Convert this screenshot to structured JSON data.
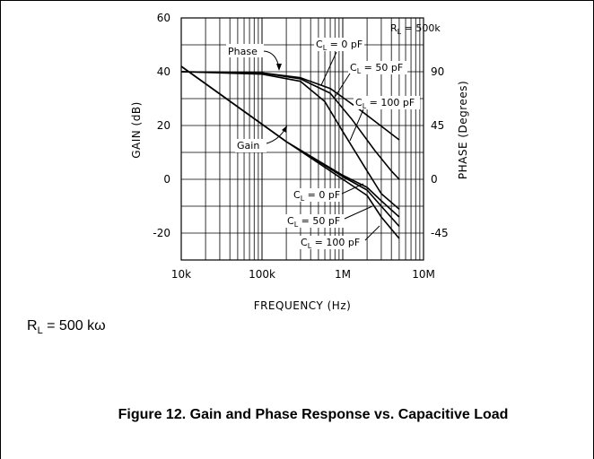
{
  "chart_data": {
    "type": "line",
    "xlabel": "FREQUENCY (Hz)",
    "ylabel_left": "GAIN (dB)",
    "ylabel_right": "PHASE (Degrees)",
    "x_scale": "log",
    "xlim": [
      10000,
      10000000
    ],
    "x_tick_labels": [
      "10k",
      "100k",
      "1M",
      "10M"
    ],
    "ylim_left": [
      -30,
      60
    ],
    "y_ticks_left": [
      -20,
      0,
      20,
      40,
      60
    ],
    "ylim_right": [
      -67.5,
      135
    ],
    "y_ticks_right": [
      -45,
      0,
      45,
      90
    ],
    "grid": true,
    "annotations": {
      "rl": "R",
      "rl_sub": "L",
      "rl_value": " = 500k",
      "phase_label": "Phase",
      "gain_label": "Gain",
      "cl_prefix": "C",
      "cl_sub": "L",
      "cl0": " = 0 pF",
      "cl50": " = 50 pF",
      "cl100": " = 100 pF"
    },
    "series": [
      {
        "quantity": "gain",
        "cl": "0 pF",
        "axis": "left",
        "x": [
          10000,
          200000,
          1000000,
          2000000,
          3000000,
          5000000
        ],
        "y": [
          42,
          14,
          1.5,
          -3,
          -8,
          -14
        ]
      },
      {
        "quantity": "gain",
        "cl": "50 pF",
        "axis": "left",
        "x": [
          10000,
          200000,
          1000000,
          2000000,
          3000000,
          5000000
        ],
        "y": [
          42,
          14,
          1,
          -4,
          -10,
          -17.5
        ]
      },
      {
        "quantity": "gain",
        "cl": "100 pF",
        "axis": "left",
        "x": [
          10000,
          200000,
          1000000,
          2000000,
          3000000,
          5000000
        ],
        "y": [
          42,
          14,
          0,
          -6,
          -14,
          -22
        ]
      },
      {
        "quantity": "phase",
        "cl": "0 pF",
        "axis": "right",
        "x": [
          10000,
          100000,
          300000,
          700000,
          1500000,
          5000000
        ],
        "y": [
          90,
          89,
          85,
          76,
          60,
          33
        ]
      },
      {
        "quantity": "phase",
        "cl": "50 pF",
        "axis": "right",
        "x": [
          10000,
          100000,
          300000,
          700000,
          1300000,
          2500000,
          4000000,
          5000000
        ],
        "y": [
          90,
          89,
          84,
          72,
          50,
          24,
          7,
          0
        ]
      },
      {
        "quantity": "phase",
        "cl": "100 pF",
        "axis": "right",
        "x": [
          10000,
          100000,
          300000,
          600000,
          1000000,
          2000000,
          3000000,
          5000000
        ],
        "y": [
          90,
          88,
          82,
          65,
          40,
          7,
          -12,
          -25
        ]
      }
    ]
  },
  "note": {
    "main": "R",
    "sub": "L",
    "rest": " = 500 kω"
  },
  "caption": "Figure 12. Gain and Phase Response vs. Capacitive Load"
}
